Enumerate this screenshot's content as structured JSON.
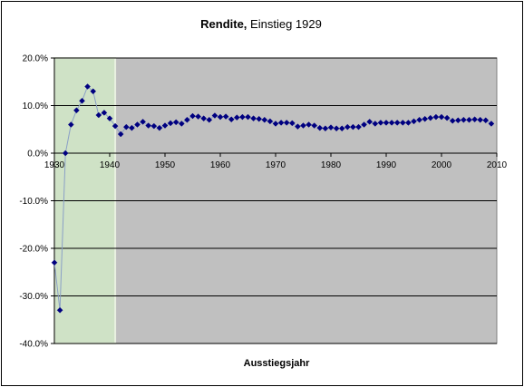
{
  "chart_data": {
    "type": "line",
    "title": "Rendite, Einstieg 1929",
    "title_bold_part": "Rendite,",
    "title_rest": " Einstieg 1929",
    "xlabel": "Ausstiegsjahr",
    "ylabel": "",
    "xlim": [
      1930,
      2010
    ],
    "ylim": [
      -0.4,
      0.2
    ],
    "x_ticks": [
      "1930",
      "1940",
      "1950",
      "1960",
      "1970",
      "1980",
      "1990",
      "2000",
      "2010"
    ],
    "y_ticks": [
      "20.0%",
      "10.0%",
      "0.0%",
      "-10.0%",
      "-20.0%",
      "-30.0%",
      "-40.0%"
    ],
    "grid": "horizontal",
    "legend": "none",
    "highlight_band": {
      "x_from": 1930,
      "x_to": 1941
    },
    "colors": {
      "plot_background": "#c0c0c0",
      "highlight": "#cfe2c6",
      "highlight_border": "#e8f0e0",
      "series": "#000080",
      "gridline": "#000000",
      "connector": "#8a9fc6"
    },
    "series": [
      {
        "x": [
          1930,
          1931,
          1932,
          1933,
          1934,
          1935,
          1936,
          1937,
          1938,
          1939,
          1940,
          1941,
          1942,
          1943,
          1944,
          1945,
          1946,
          1947,
          1948,
          1949,
          1950,
          1951,
          1952,
          1953,
          1954,
          1955,
          1956,
          1957,
          1958,
          1959,
          1960,
          1961,
          1962,
          1963,
          1964,
          1965,
          1966,
          1967,
          1968,
          1969,
          1970,
          1971,
          1972,
          1973,
          1974,
          1975,
          1976,
          1977,
          1978,
          1979,
          1980,
          1981,
          1982,
          1983,
          1984,
          1985,
          1986,
          1987,
          1988,
          1989,
          1990,
          1991,
          1992,
          1993,
          1994,
          1995,
          1996,
          1997,
          1998,
          1999,
          2000,
          2001,
          2002,
          2003,
          2004,
          2005,
          2006,
          2007,
          2008,
          2009
        ],
        "values": [
          -0.23,
          -0.33,
          0.0,
          0.06,
          0.09,
          0.11,
          0.14,
          0.13,
          0.08,
          0.085,
          0.073,
          0.057,
          0.04,
          0.055,
          0.053,
          0.06,
          0.066,
          0.058,
          0.057,
          0.053,
          0.058,
          0.063,
          0.065,
          0.062,
          0.07,
          0.078,
          0.077,
          0.073,
          0.07,
          0.079,
          0.076,
          0.077,
          0.071,
          0.075,
          0.076,
          0.076,
          0.073,
          0.072,
          0.07,
          0.067,
          0.062,
          0.064,
          0.064,
          0.063,
          0.056,
          0.058,
          0.06,
          0.058,
          0.053,
          0.052,
          0.054,
          0.052,
          0.052,
          0.055,
          0.055,
          0.055,
          0.06,
          0.066,
          0.062,
          0.064,
          0.064,
          0.064,
          0.064,
          0.064,
          0.064,
          0.067,
          0.07,
          0.072,
          0.074,
          0.076,
          0.076,
          0.074,
          0.068,
          0.069,
          0.07,
          0.07,
          0.071,
          0.07,
          0.069,
          0.062
        ]
      }
    ]
  }
}
